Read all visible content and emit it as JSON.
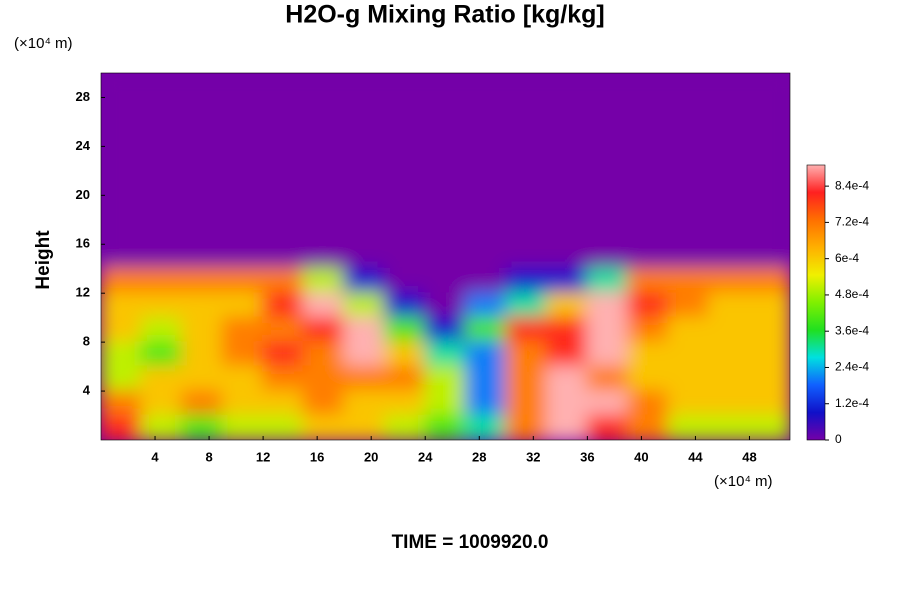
{
  "chart_data": {
    "type": "heatmap",
    "title": "H2O-g Mixing Ratio [kg/kg]",
    "y_label": "Height",
    "y_unit": "(×10⁴ m)",
    "x_unit": "(×10⁴ m)",
    "annotation": "TIME = 1009920.0",
    "x": [
      1.5,
      4.5,
      7.5,
      10.5,
      13.5,
      16.5,
      19.5,
      22.5,
      25.5,
      28.5,
      31.5,
      34.5,
      37.5,
      40.5,
      43.5,
      46.5,
      49.5
    ],
    "y": [
      29,
      27,
      25,
      23,
      21,
      19,
      17,
      15,
      13,
      11,
      9,
      7,
      5,
      3,
      1
    ],
    "z": [
      [
        0,
        0,
        0,
        0,
        0,
        0,
        0,
        0,
        0,
        0,
        0,
        0,
        0,
        0,
        0,
        0,
        0
      ],
      [
        0,
        0,
        0,
        0,
        0,
        0,
        0,
        0,
        0,
        0,
        0,
        0,
        0,
        0,
        0,
        0,
        0
      ],
      [
        0,
        0,
        0,
        0,
        0,
        0,
        0,
        0,
        0,
        0,
        0,
        0,
        0,
        0,
        0,
        0,
        0
      ],
      [
        0,
        0,
        0,
        0,
        0,
        0,
        0,
        0,
        0,
        0,
        0,
        0,
        0,
        0,
        0,
        0,
        0
      ],
      [
        0,
        0,
        0,
        0,
        0,
        0,
        0,
        0,
        0,
        0,
        0,
        0,
        0,
        0,
        0,
        0,
        0
      ],
      [
        0,
        0,
        0,
        0,
        0,
        0,
        0,
        0,
        0,
        0,
        0,
        0,
        0,
        0,
        0,
        0,
        0
      ],
      [
        0,
        0,
        0,
        0,
        0,
        0,
        0,
        0,
        0,
        0,
        0,
        0,
        0,
        0,
        0,
        0,
        0
      ],
      [
        0,
        0,
        0,
        0,
        0,
        0,
        0,
        0,
        0,
        0,
        0,
        0,
        0,
        0,
        0,
        0,
        0
      ],
      [
        0.0007,
        0.0007,
        0.0007,
        0.0007,
        0.0007,
        0.0005,
        0.0001,
        0,
        0,
        0,
        0.0001,
        0.0001,
        0.0003,
        0.0007,
        0.0007,
        0.0007,
        0.0007
      ],
      [
        0.0006,
        0.0006,
        0.0006,
        0.0006,
        0.0008,
        0.0009,
        0.0005,
        0.0001,
        0,
        0.0002,
        0.0003,
        0.0006,
        0.0009,
        0.0008,
        0.0007,
        0.0006,
        0.0006
      ],
      [
        0.0006,
        0.0005,
        0.0006,
        0.0007,
        0.0007,
        0.0008,
        0.0009,
        0.0004,
        0.0001,
        0.0004,
        0.0008,
        0.0008,
        0.0009,
        0.0007,
        0.0006,
        0.0006,
        0.0006
      ],
      [
        0.0005,
        0.0004,
        0.0006,
        0.0007,
        0.0008,
        0.0007,
        0.0009,
        0.0006,
        0.0003,
        0.0002,
        0.0007,
        0.0008,
        0.0009,
        0.0006,
        0.0006,
        0.0006,
        0.0006
      ],
      [
        0.0005,
        0.0006,
        0.0006,
        0.0006,
        0.0007,
        0.0007,
        0.0007,
        0.0007,
        0.0005,
        0.0002,
        0.0007,
        0.0009,
        0.0007,
        0.0006,
        0.0006,
        0.0006,
        0.0006
      ],
      [
        0.0007,
        0.0006,
        0.0007,
        0.0006,
        0.0006,
        0.0007,
        0.0006,
        0.0006,
        0.0005,
        0.0002,
        0.0007,
        0.0009,
        0.0009,
        0.0007,
        0.0006,
        0.0006,
        0.0006
      ],
      [
        0.0008,
        0.0005,
        0.0004,
        0.0005,
        0.0005,
        0.0006,
        0.0006,
        0.0005,
        0.0004,
        0.0003,
        0.0007,
        0.0009,
        0.0008,
        0.0007,
        0.0005,
        0.0005,
        0.0005
      ]
    ],
    "xlim": [
      0,
      51
    ],
    "ylim": [
      0,
      30
    ],
    "xticks": [
      4,
      8,
      12,
      16,
      20,
      24,
      28,
      32,
      36,
      40,
      44,
      48
    ],
    "yticks": [
      4,
      8,
      12,
      16,
      20,
      24,
      28
    ],
    "clim": [
      0,
      0.0009
    ],
    "cticks": [
      0,
      {
        "value": 0.00012,
        "label": "1.2e-4"
      },
      {
        "value": 0.00024,
        "label": "2.4e-4"
      },
      {
        "value": 0.00036,
        "label": "3.6e-4"
      },
      {
        "value": 0.00048,
        "label": "4.8e-4"
      },
      {
        "value": 0.0006,
        "label": "6e-4"
      },
      {
        "value": 0.00072,
        "label": "7.2e-4"
      },
      {
        "value": 0.00084,
        "label": "8.4e-4"
      }
    ],
    "colormap": [
      "#7400a8",
      "#1010c8",
      "#1060ff",
      "#00e0e0",
      "#20e020",
      "#80f000",
      "#f0f000",
      "#ffb000",
      "#ff7000",
      "#ff2020",
      "#ffb0b0"
    ]
  }
}
